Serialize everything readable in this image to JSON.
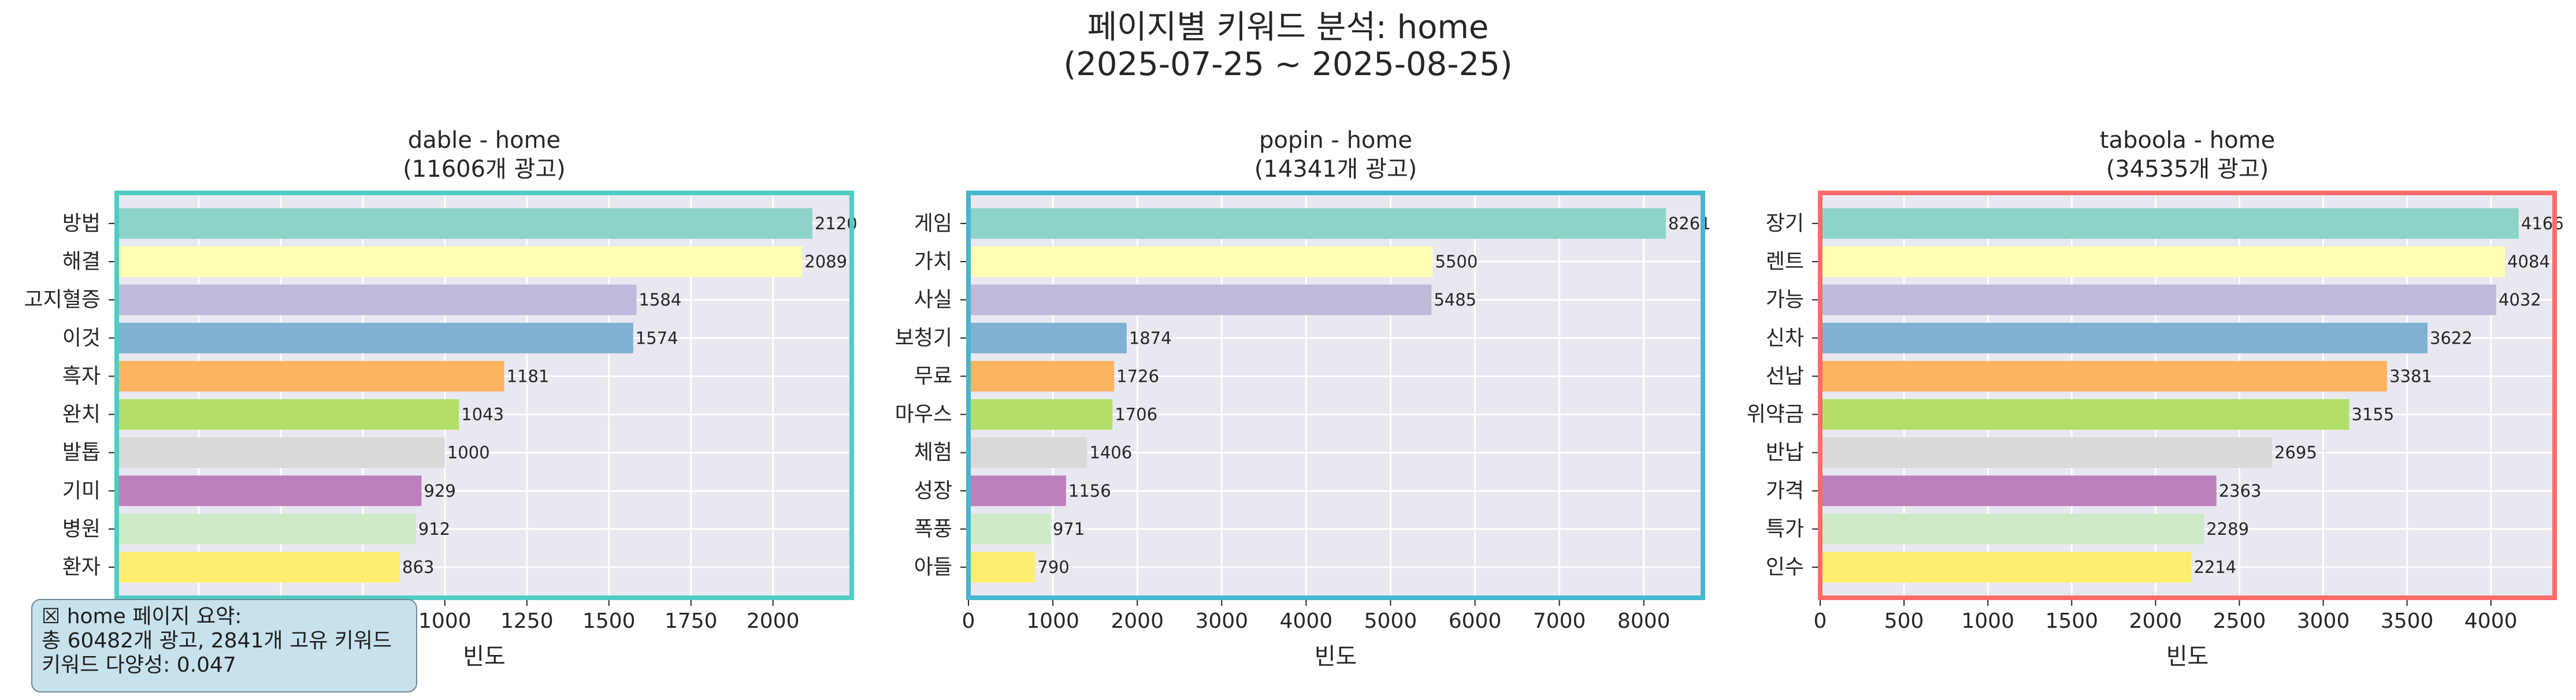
{
  "figure": {
    "title_line1": "페이지별 키워드 분석: home",
    "title_line2": "(2025-07-25 ~ 2025-08-25)"
  },
  "summary": {
    "line1": "☒ home 페이지 요약:",
    "line2": "총 60482개 광고, 2841개 고유 키워드",
    "line3": "키워드 다양성: 0.047"
  },
  "colors": {
    "background": "#e8e8f0",
    "grid": "#ffffff",
    "bar_palette": [
      "#8dd3c7",
      "#ffffb3",
      "#bebada",
      "#80b1d3",
      "#fdb462",
      "#b3de69",
      "#d9d9d9",
      "#bc80bd",
      "#ccebc5",
      "#ffed6f"
    ]
  },
  "chart_data": [
    {
      "type": "bar",
      "orientation": "horizontal",
      "title_line1": "dable - home",
      "title_line2": "(11606개 광고)",
      "xlabel": "빈도",
      "border_color": "#4ecdc4",
      "xlim": [
        0,
        2240
      ],
      "xticks": [
        0,
        250,
        500,
        750,
        1000,
        1250,
        1500,
        1750,
        2000
      ],
      "grid": true,
      "categories": [
        "방법",
        "해결",
        "고지혈증",
        "이것",
        "흑자",
        "완치",
        "발톱",
        "기미",
        "병원",
        "환자"
      ],
      "values": [
        2120,
        2089,
        1584,
        1574,
        1181,
        1043,
        1000,
        929,
        912,
        863
      ]
    },
    {
      "type": "bar",
      "orientation": "horizontal",
      "title_line1": "popin - home",
      "title_line2": "(14341개 광고)",
      "xlabel": "빈도",
      "border_color": "#45b7d1",
      "xlim": [
        0,
        8700
      ],
      "xticks": [
        0,
        1000,
        2000,
        3000,
        4000,
        5000,
        6000,
        7000,
        8000
      ],
      "grid": true,
      "categories": [
        "게임",
        "가치",
        "사실",
        "보청기",
        "무료",
        "마우스",
        "체험",
        "성장",
        "폭풍",
        "아들"
      ],
      "values": [
        8261,
        5500,
        5485,
        1874,
        1726,
        1706,
        1406,
        1156,
        971,
        790
      ]
    },
    {
      "type": "bar",
      "orientation": "horizontal",
      "title_line1": "taboola - home",
      "title_line2": "(34535개 광고)",
      "xlabel": "빈도",
      "border_color": "#ff6b6b",
      "xlim": [
        0,
        4380
      ],
      "xticks": [
        0,
        500,
        1000,
        1500,
        2000,
        2500,
        3000,
        3500,
        4000
      ],
      "grid": true,
      "categories": [
        "장기",
        "렌트",
        "가능",
        "신차",
        "선납",
        "위약금",
        "반납",
        "가격",
        "특가",
        "인수"
      ],
      "values": [
        4166,
        4084,
        4032,
        3622,
        3381,
        3155,
        2695,
        2363,
        2289,
        2214
      ]
    }
  ]
}
